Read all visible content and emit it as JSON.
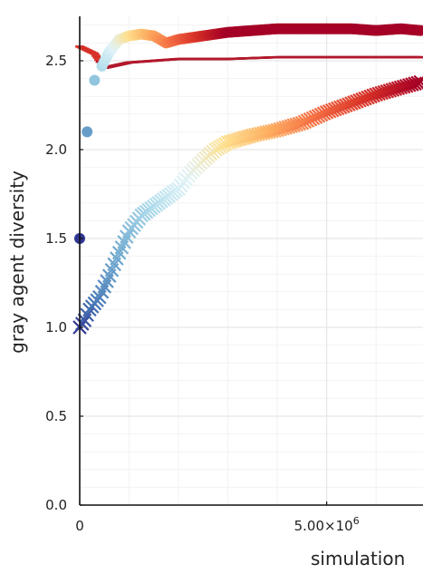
{
  "chart_data": {
    "type": "scatter",
    "ylabel": "gray agent diversity",
    "xlabel": "simulation",
    "ylim": [
      0,
      2.75
    ],
    "xlim_visible": [
      0,
      6950000
    ],
    "x_ticks": [
      {
        "value": 0,
        "base": "0",
        "exp": ""
      },
      {
        "value": 5000000,
        "base": "5.00×10",
        "exp": "6"
      }
    ],
    "y_ticks": [
      {
        "value": 0,
        "label": "0.0"
      },
      {
        "value": 0.5,
        "label": "0.5"
      },
      {
        "value": 1.0,
        "label": "1.0"
      },
      {
        "value": 1.5,
        "label": "1.5"
      },
      {
        "value": 2.0,
        "label": "2.0"
      },
      {
        "value": 2.5,
        "label": "2.5"
      }
    ],
    "grid": true,
    "colormap": "blue-to-red (early steps blue, late steps red)",
    "series": [
      {
        "marker": "circle",
        "values": [
          [
            0,
            1.5
          ],
          [
            150000,
            2.1
          ],
          [
            300000,
            2.39
          ],
          [
            450000,
            2.47
          ],
          [
            600000,
            2.55
          ],
          [
            800000,
            2.62
          ],
          [
            1000000,
            2.64
          ],
          [
            1250000,
            2.65
          ],
          [
            1500000,
            2.64
          ],
          [
            1750000,
            2.6
          ],
          [
            2000000,
            2.62
          ],
          [
            2500000,
            2.64
          ],
          [
            3000000,
            2.66
          ],
          [
            3500000,
            2.67
          ],
          [
            4000000,
            2.68
          ],
          [
            4500000,
            2.68
          ],
          [
            5000000,
            2.68
          ],
          [
            5500000,
            2.68
          ],
          [
            6000000,
            2.67
          ],
          [
            6500000,
            2.68
          ],
          [
            6900000,
            2.67
          ]
        ]
      },
      {
        "marker": "cross",
        "values": [
          [
            0,
            1.0
          ],
          [
            100000,
            1.04
          ],
          [
            200000,
            1.1
          ],
          [
            400000,
            1.17
          ],
          [
            600000,
            1.29
          ],
          [
            800000,
            1.42
          ],
          [
            1000000,
            1.54
          ],
          [
            1250000,
            1.63
          ],
          [
            1500000,
            1.68
          ],
          [
            1750000,
            1.73
          ],
          [
            2000000,
            1.78
          ],
          [
            2250000,
            1.87
          ],
          [
            2500000,
            1.94
          ],
          [
            2750000,
            2.0
          ],
          [
            3000000,
            2.04
          ],
          [
            3250000,
            2.06
          ],
          [
            3500000,
            2.08
          ],
          [
            4000000,
            2.11
          ],
          [
            4500000,
            2.15
          ],
          [
            5000000,
            2.21
          ],
          [
            5500000,
            2.26
          ],
          [
            6000000,
            2.31
          ],
          [
            6500000,
            2.35
          ],
          [
            6900000,
            2.38
          ]
        ]
      },
      {
        "marker": "dash",
        "values": [
          [
            0,
            2.58
          ],
          [
            300000,
            2.54
          ],
          [
            500000,
            2.46
          ],
          [
            1000000,
            2.49
          ],
          [
            1500000,
            2.5
          ],
          [
            2000000,
            2.51
          ],
          [
            3000000,
            2.51
          ],
          [
            4000000,
            2.52
          ],
          [
            5000000,
            2.52
          ],
          [
            6000000,
            2.52
          ],
          [
            6900000,
            2.52
          ]
        ]
      }
    ]
  }
}
